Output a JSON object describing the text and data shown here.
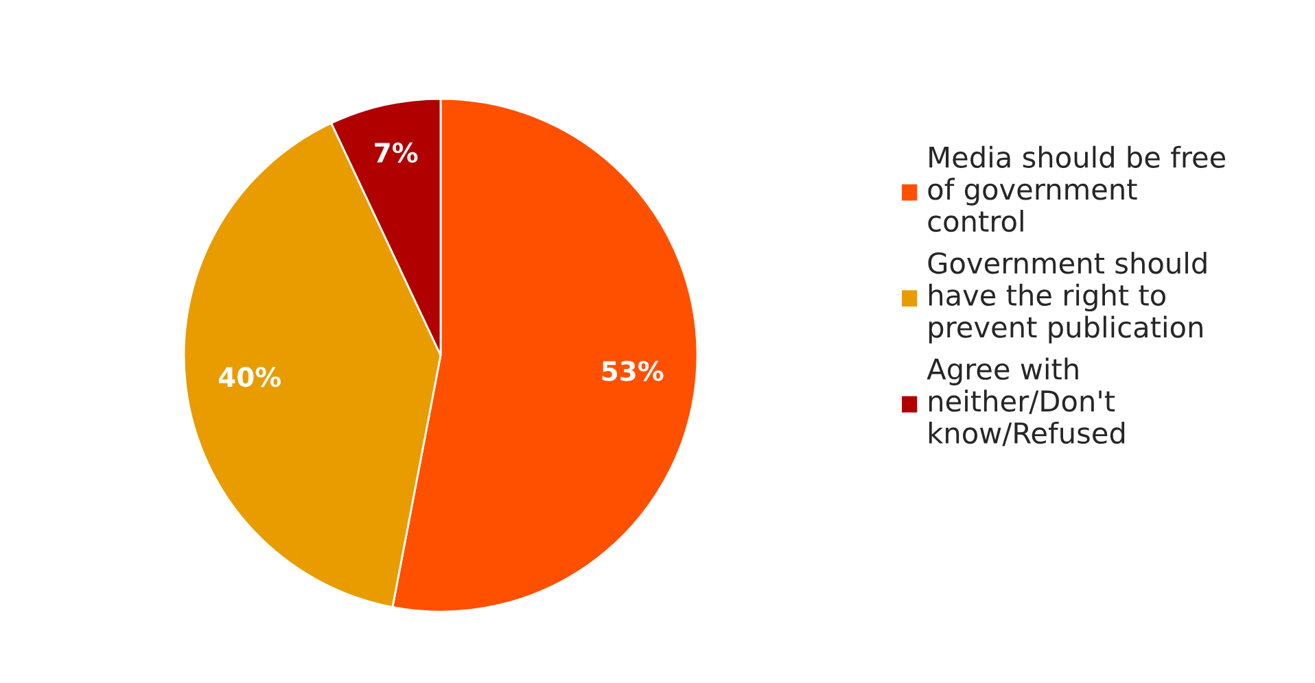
{
  "chart_data": {
    "type": "pie",
    "categories": [
      "Media should be free of government control",
      "Government should have the right to prevent publication",
      "Agree with neither/Don't know/Refused"
    ],
    "values": [
      53,
      40,
      7
    ],
    "colors": [
      "#ff5000",
      "#e89c00",
      "#b00000"
    ],
    "value_labels": [
      "53%",
      "40%",
      "7%"
    ],
    "legend": "right"
  }
}
